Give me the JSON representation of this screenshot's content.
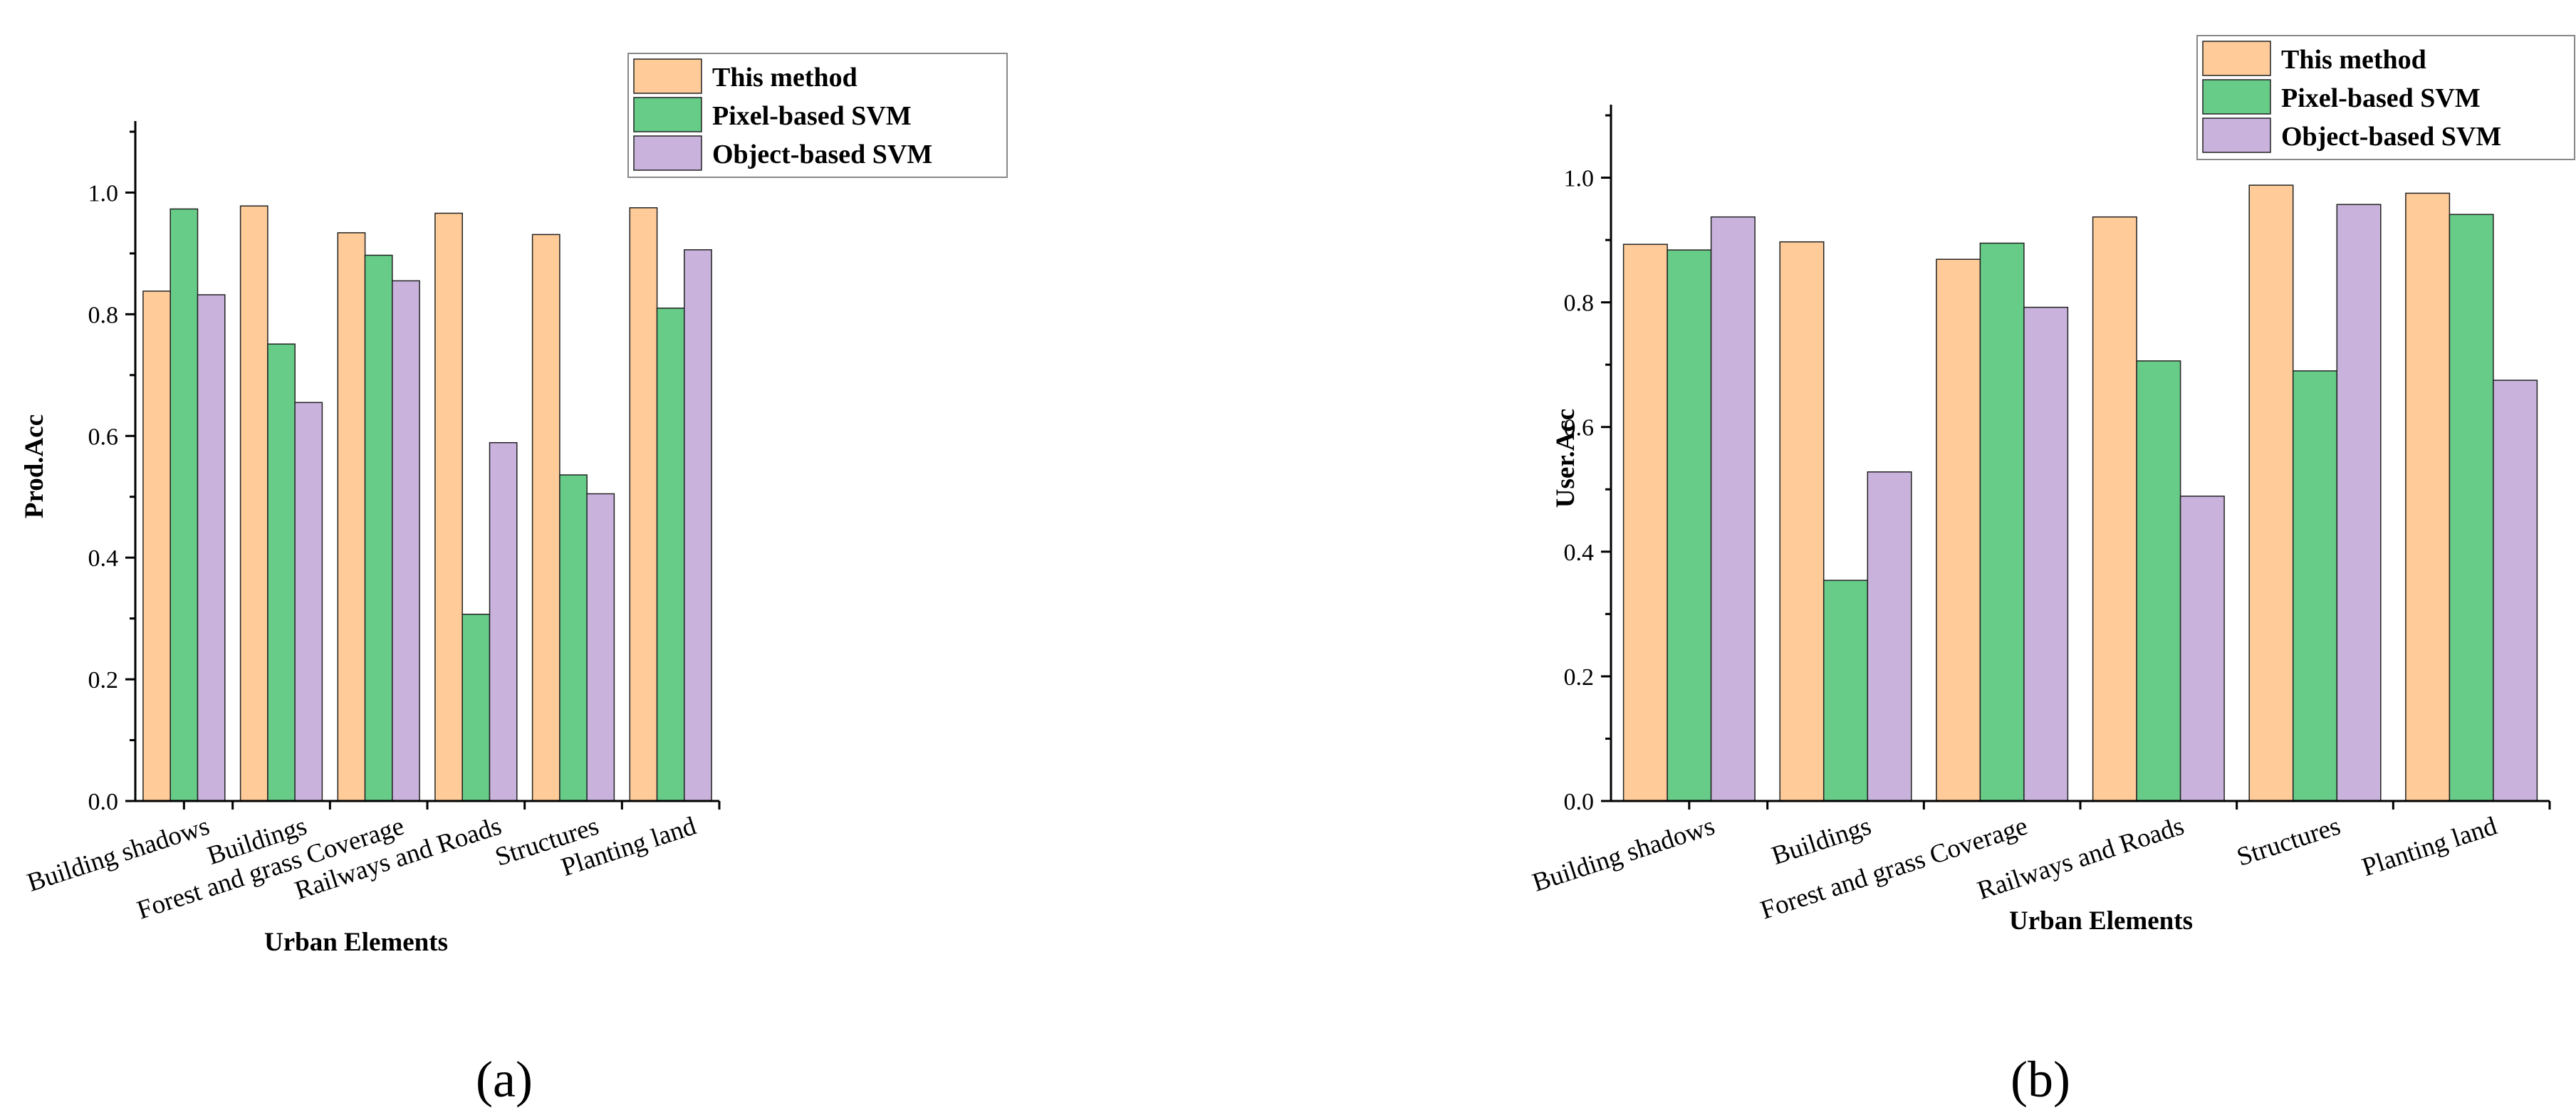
{
  "chart_data": [
    {
      "id": "a",
      "type": "bar",
      "panel_label": "(a)",
      "xlabel": "Urban Elements",
      "ylabel": "Prod.Acc",
      "ylim": [
        0,
        1.1
      ],
      "yticks": [
        "0.0",
        "0.2",
        "0.4",
        "0.6",
        "0.8",
        "1.0"
      ],
      "categories": [
        "Building shadows",
        "Buildings",
        "Forest and grass Coverage",
        "Railways and Roads",
        "Structures",
        "Planting land"
      ],
      "legend_position": "top-right",
      "series": [
        {
          "name": "This method",
          "color": "#FFCC99",
          "values": [
            0.838,
            0.978,
            0.934,
            0.966,
            0.931,
            0.975
          ]
        },
        {
          "name": "Pixel-based SVM",
          "color": "#66CC88",
          "values": [
            0.973,
            0.751,
            0.897,
            0.307,
            0.536,
            0.81
          ]
        },
        {
          "name": "Object-based SVM",
          "color": "#C9B3DD",
          "values": [
            0.832,
            0.655,
            0.855,
            0.589,
            0.505,
            0.906
          ]
        }
      ]
    },
    {
      "id": "b",
      "type": "bar",
      "panel_label": "(b)",
      "xlabel": "Urban Elements",
      "ylabel": "User.Acc",
      "ylim": [
        0,
        1.1
      ],
      "yticks": [
        "0.0",
        "0.2",
        "0.4",
        "0.6",
        "0.8",
        "1.0"
      ],
      "categories": [
        "Building shadows",
        "Buildings",
        "Forest and grass Coverage",
        "Railways and Roads",
        "Structures",
        "Planting land"
      ],
      "legend_position": "top-right",
      "series": [
        {
          "name": "This method",
          "color": "#FFCC99",
          "values": [
            0.893,
            0.897,
            0.869,
            0.937,
            0.988,
            0.975
          ]
        },
        {
          "name": "Pixel-based SVM",
          "color": "#66CC88",
          "values": [
            0.884,
            0.354,
            0.895,
            0.706,
            0.69,
            0.941
          ]
        },
        {
          "name": "Object-based SVM",
          "color": "#C9B3DD",
          "values": [
            0.937,
            0.528,
            0.792,
            0.489,
            0.957,
            0.675
          ]
        }
      ]
    }
  ]
}
